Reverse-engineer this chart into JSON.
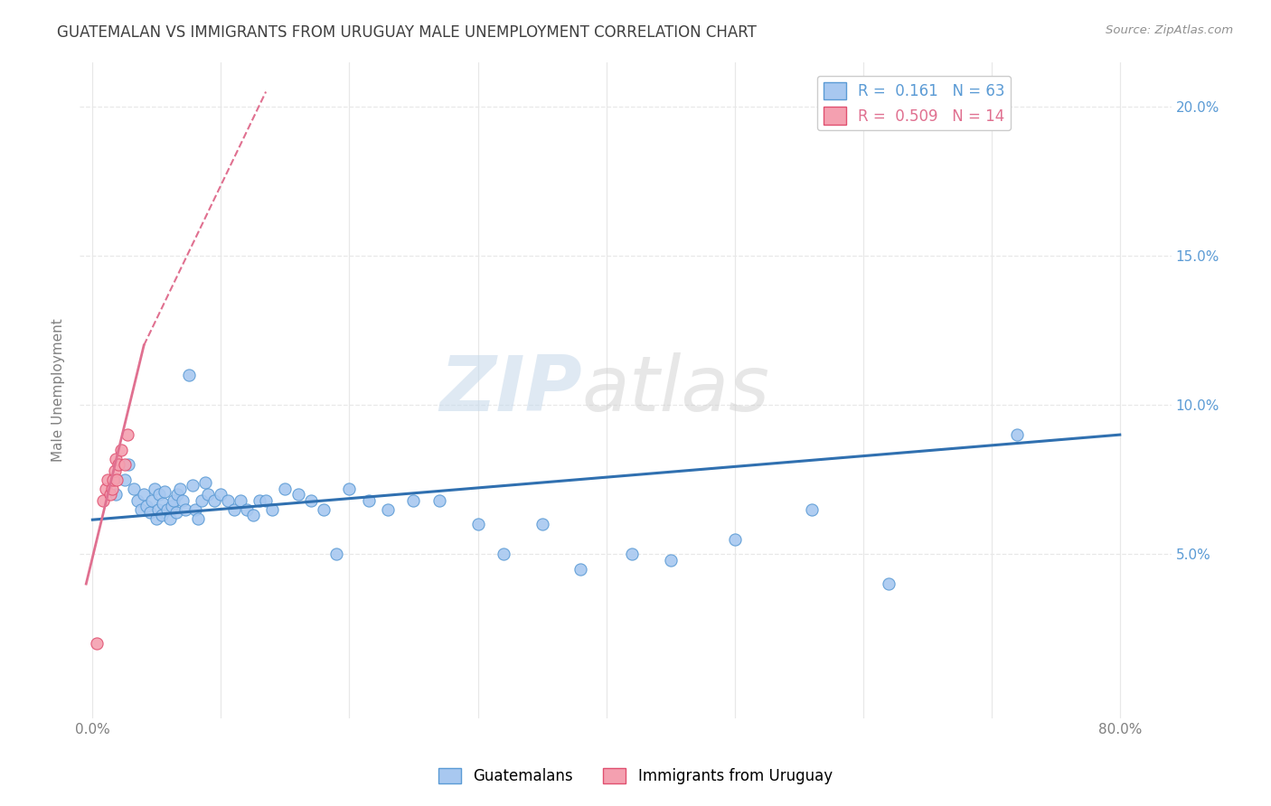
{
  "title": "GUATEMALAN VS IMMIGRANTS FROM URUGUAY MALE UNEMPLOYMENT CORRELATION CHART",
  "source": "Source: ZipAtlas.com",
  "ylabel": "Male Unemployment",
  "right_yticks": [
    0.0,
    0.05,
    0.1,
    0.15,
    0.2
  ],
  "right_yticklabels": [
    "",
    "5.0%",
    "10.0%",
    "15.0%",
    "20.0%"
  ],
  "xticks": [
    0.0,
    0.1,
    0.2,
    0.3,
    0.4,
    0.5,
    0.6,
    0.7,
    0.8
  ],
  "xticklabels": [
    "0.0%",
    "",
    "",
    "",
    "",
    "",
    "",
    "",
    "80.0%"
  ],
  "xlim": [
    -0.01,
    0.84
  ],
  "ylim": [
    -0.005,
    0.215
  ],
  "legend_items": [
    {
      "label": "R =  0.161   N = 63",
      "color": "#a8c8f0"
    },
    {
      "label": "R =  0.509   N = 14",
      "color": "#f4a0b0"
    }
  ],
  "legend_labels_bottom": [
    "Guatemalans",
    "Immigrants from Uruguay"
  ],
  "blue_scatter_x": [
    0.018,
    0.025,
    0.028,
    0.032,
    0.035,
    0.038,
    0.04,
    0.042,
    0.045,
    0.046,
    0.048,
    0.05,
    0.051,
    0.052,
    0.054,
    0.055,
    0.056,
    0.058,
    0.06,
    0.062,
    0.063,
    0.065,
    0.066,
    0.068,
    0.07,
    0.072,
    0.075,
    0.078,
    0.08,
    0.082,
    0.085,
    0.088,
    0.09,
    0.095,
    0.1,
    0.105,
    0.11,
    0.115,
    0.12,
    0.125,
    0.13,
    0.135,
    0.14,
    0.15,
    0.16,
    0.17,
    0.18,
    0.19,
    0.2,
    0.215,
    0.23,
    0.25,
    0.27,
    0.3,
    0.32,
    0.35,
    0.38,
    0.42,
    0.45,
    0.5,
    0.56,
    0.62,
    0.72
  ],
  "blue_scatter_y": [
    0.07,
    0.075,
    0.08,
    0.072,
    0.068,
    0.065,
    0.07,
    0.066,
    0.064,
    0.068,
    0.072,
    0.062,
    0.065,
    0.07,
    0.063,
    0.067,
    0.071,
    0.065,
    0.062,
    0.066,
    0.068,
    0.064,
    0.07,
    0.072,
    0.068,
    0.065,
    0.11,
    0.073,
    0.065,
    0.062,
    0.068,
    0.074,
    0.07,
    0.068,
    0.07,
    0.068,
    0.065,
    0.068,
    0.065,
    0.063,
    0.068,
    0.068,
    0.065,
    0.072,
    0.07,
    0.068,
    0.065,
    0.05,
    0.072,
    0.068,
    0.065,
    0.068,
    0.068,
    0.06,
    0.05,
    0.06,
    0.045,
    0.05,
    0.048,
    0.055,
    0.065,
    0.04,
    0.09
  ],
  "pink_scatter_x": [
    0.003,
    0.008,
    0.01,
    0.012,
    0.014,
    0.015,
    0.016,
    0.017,
    0.018,
    0.019,
    0.02,
    0.022,
    0.025,
    0.027
  ],
  "pink_scatter_y": [
    0.02,
    0.068,
    0.072,
    0.075,
    0.07,
    0.072,
    0.075,
    0.078,
    0.082,
    0.075,
    0.08,
    0.085,
    0.08,
    0.09
  ],
  "blue_line_x": [
    0.0,
    0.8
  ],
  "blue_line_y": [
    0.0615,
    0.09
  ],
  "pink_line_x": [
    -0.005,
    0.04
  ],
  "pink_line_y": [
    0.04,
    0.12
  ],
  "pink_dash_line_x": [
    0.04,
    0.135
  ],
  "pink_dash_line_y": [
    0.12,
    0.205
  ],
  "watermark": "ZIPatlas",
  "title_color": "#404040",
  "blue_color": "#a8c8f0",
  "blue_edge_color": "#5b9bd5",
  "pink_color": "#f4a0b0",
  "pink_edge_color": "#e05070",
  "blue_line_color": "#3070b0",
  "pink_line_color": "#e07090",
  "background_color": "#ffffff",
  "grid_color": "#e8e8e8",
  "grid_style": "--"
}
